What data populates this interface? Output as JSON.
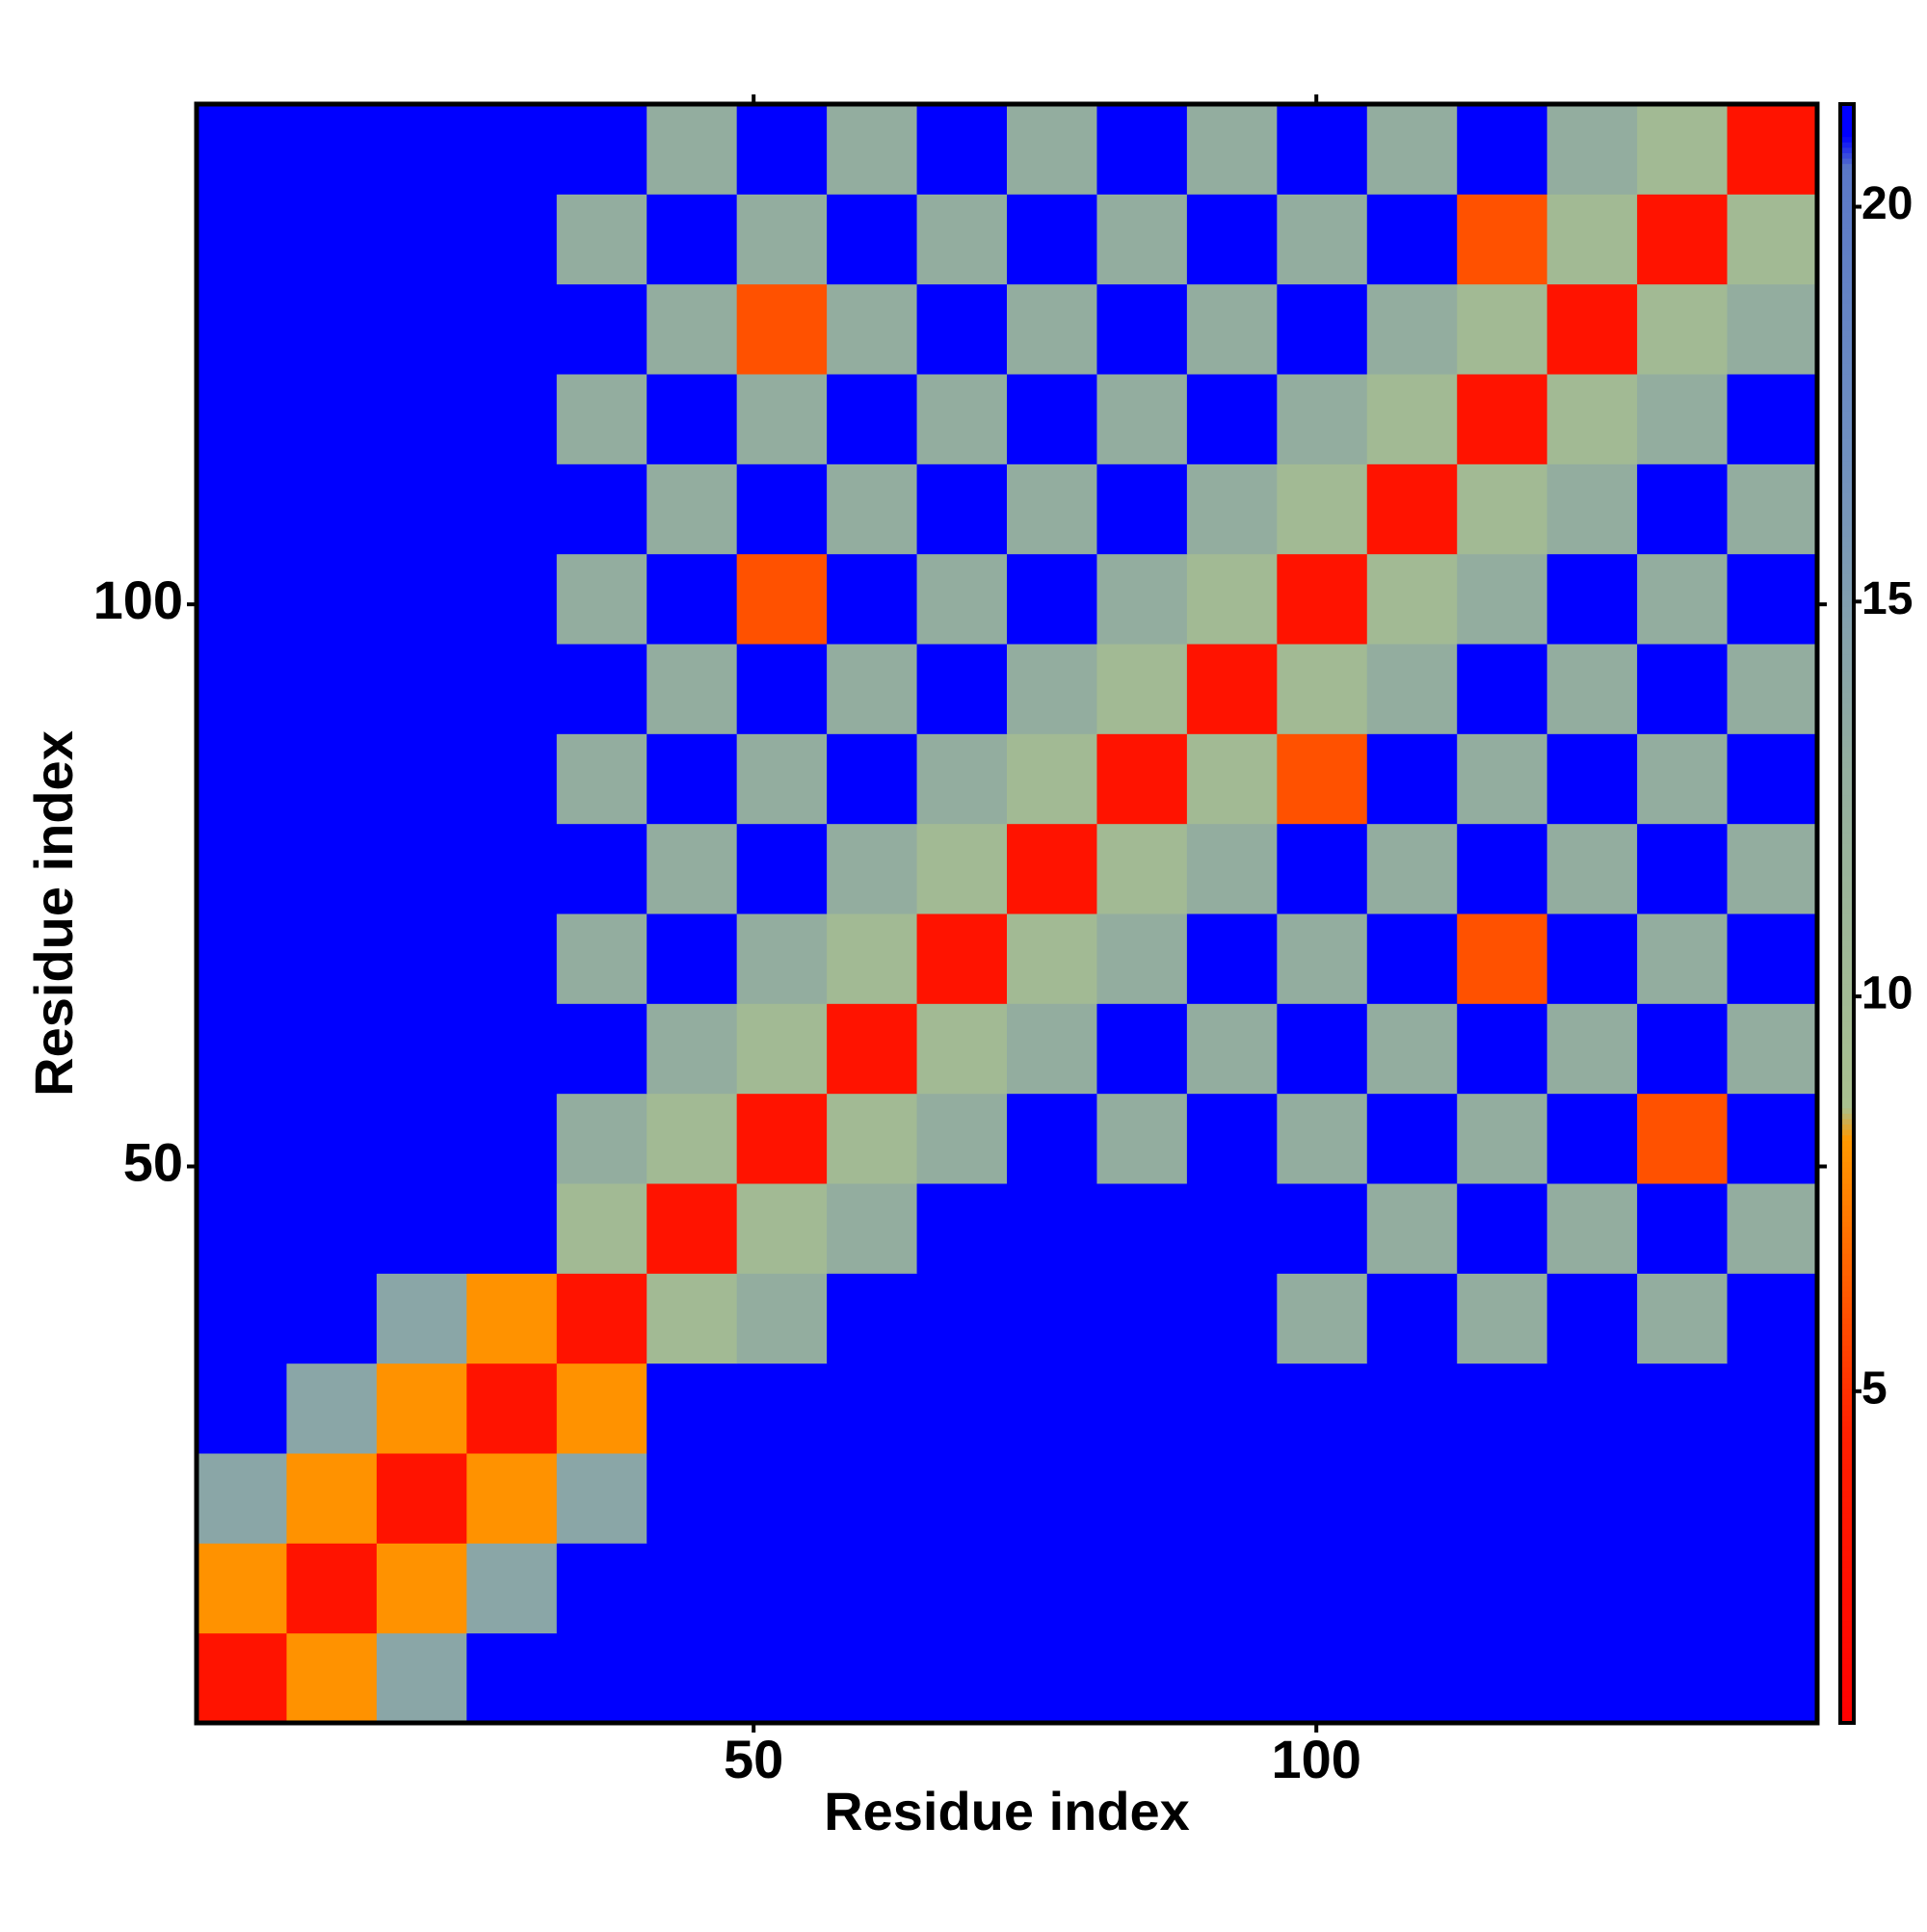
{
  "chart_data": {
    "type": "heatmap",
    "xlabel": "Residue index",
    "ylabel": "Residue index",
    "xbins": [
      0.5,
      8.5,
      16.5,
      24.5,
      32.5,
      40.5,
      48.5,
      56.5,
      64.5,
      72.5,
      80.5,
      88.5,
      96.5,
      104.5,
      112.5,
      120.5,
      128.5,
      136.5,
      144.5
    ],
    "ybins": [
      0.5,
      8.5,
      16.5,
      24.5,
      32.5,
      40.5,
      48.5,
      56.5,
      64.5,
      72.5,
      80.5,
      88.5,
      96.5,
      104.5,
      112.5,
      120.5,
      128.5,
      136.5,
      144.5
    ],
    "values": [
      [
        3,
        8,
        14,
        21,
        21,
        21,
        21,
        21,
        21,
        21,
        21,
        21,
        21,
        21,
        21,
        21,
        21,
        21
      ],
      [
        8,
        3,
        8,
        14,
        21,
        21,
        21,
        21,
        21,
        21,
        21,
        21,
        21,
        21,
        21,
        21,
        21,
        21
      ],
      [
        14,
        8,
        3,
        8,
        14,
        21,
        21,
        21,
        21,
        21,
        21,
        21,
        21,
        21,
        21,
        21,
        21,
        21
      ],
      [
        21,
        14,
        8,
        3,
        8,
        21,
        21,
        21,
        21,
        21,
        21,
        21,
        21,
        21,
        21,
        21,
        21,
        21
      ],
      [
        21,
        21,
        14,
        8,
        3,
        10,
        13,
        21,
        21,
        21,
        21,
        21,
        13,
        21,
        13,
        21,
        13,
        21
      ],
      [
        21,
        21,
        21,
        21,
        10,
        3,
        10,
        13,
        21,
        21,
        21,
        21,
        21,
        13,
        21,
        13,
        21,
        13
      ],
      [
        21,
        21,
        21,
        21,
        13,
        10,
        3,
        10,
        13,
        21,
        13,
        21,
        13,
        21,
        13,
        21,
        6,
        21
      ],
      [
        21,
        21,
        21,
        21,
        21,
        13,
        10,
        3,
        10,
        13,
        21,
        13,
        21,
        13,
        21,
        13,
        21,
        13
      ],
      [
        21,
        21,
        21,
        21,
        13,
        21,
        13,
        10,
        3,
        10,
        13,
        21,
        13,
        21,
        6,
        21,
        13,
        21
      ],
      [
        21,
        21,
        21,
        21,
        21,
        13,
        21,
        13,
        10,
        3,
        10,
        13,
        21,
        13,
        21,
        13,
        21,
        13
      ],
      [
        21,
        21,
        21,
        21,
        13,
        21,
        13,
        21,
        13,
        10,
        3,
        10,
        6,
        21,
        13,
        21,
        13,
        21
      ],
      [
        21,
        21,
        21,
        21,
        21,
        13,
        21,
        13,
        21,
        13,
        10,
        3,
        10,
        13,
        21,
        13,
        21,
        13
      ],
      [
        21,
        21,
        21,
        21,
        13,
        21,
        6,
        21,
        13,
        21,
        13,
        10,
        3,
        10,
        13,
        21,
        13,
        21
      ],
      [
        21,
        21,
        21,
        21,
        21,
        13,
        21,
        13,
        21,
        13,
        21,
        13,
        10,
        3,
        10,
        13,
        21,
        13
      ],
      [
        21,
        21,
        21,
        21,
        13,
        21,
        13,
        21,
        13,
        21,
        13,
        21,
        13,
        10,
        3,
        10,
        13,
        21
      ],
      [
        21,
        21,
        21,
        21,
        21,
        13,
        6,
        13,
        21,
        13,
        21,
        13,
        21,
        13,
        10,
        3,
        10,
        13
      ],
      [
        21,
        21,
        21,
        21,
        13,
        21,
        13,
        21,
        13,
        21,
        13,
        21,
        13,
        21,
        6,
        10,
        3,
        10
      ],
      [
        21,
        21,
        21,
        21,
        21,
        13,
        21,
        13,
        21,
        13,
        21,
        13,
        21,
        13,
        21,
        13,
        10,
        3
      ]
    ],
    "xlim": [
      0.5,
      144.5
    ],
    "ylim": [
      0.5,
      144.5
    ],
    "xticks": [
      50,
      100
    ],
    "yticks": [
      50,
      100
    ],
    "zlim": [
      0.8,
      21.3
    ],
    "zticks": [
      5,
      10,
      15,
      20
    ],
    "colorscale": [
      [
        0.8,
        "#ff0000"
      ],
      [
        4.5,
        "#ff2000"
      ],
      [
        8.2,
        "#ff9900"
      ],
      [
        8.6,
        "#a9c08f"
      ],
      [
        13,
        "#93ad9f"
      ],
      [
        17,
        "#6f8fc0"
      ],
      [
        20.5,
        "#5a78c8"
      ],
      [
        20.9,
        "#0000ff"
      ],
      [
        21.3,
        "#0000ff"
      ]
    ]
  }
}
